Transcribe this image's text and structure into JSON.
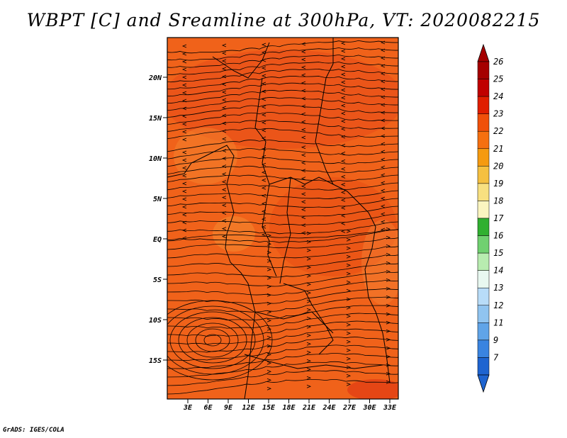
{
  "title": "WBPT [C] and Sreamline at 300hPa, VT: 2020082215",
  "credit": "GrADS: IGES/COLA",
  "map": {
    "lon_ticks": [
      "3E",
      "6E",
      "9E",
      "12E",
      "15E",
      "18E",
      "21E",
      "24E",
      "27E",
      "30E",
      "33E"
    ],
    "lat_ticks": [
      "20N",
      "15N",
      "10N",
      "5N",
      "EQ",
      "5S",
      "10S",
      "15S"
    ],
    "field": "wet-bulb potential temperature",
    "dominant_color": "#ef5a10"
  },
  "colorbar": {
    "labels": [
      "26",
      "25",
      "24",
      "23",
      "22",
      "21",
      "20",
      "19",
      "18",
      "17",
      "16",
      "15",
      "14",
      "13",
      "12",
      "11",
      "9",
      "7"
    ],
    "colors": [
      "#a50000",
      "#c00000",
      "#e01e00",
      "#f0500a",
      "#f57010",
      "#f59a10",
      "#f5c040",
      "#f8e080",
      "#fbf5c0",
      "#30b030",
      "#70d070",
      "#b8ecb0",
      "#e8f8f0",
      "#b8dcf8",
      "#90c4f0",
      "#60a4e8",
      "#3a84e0",
      "#1e64d0"
    ],
    "top_arrow_color": "#a50000",
    "bottom_arrow_color": "#1e64d0"
  }
}
